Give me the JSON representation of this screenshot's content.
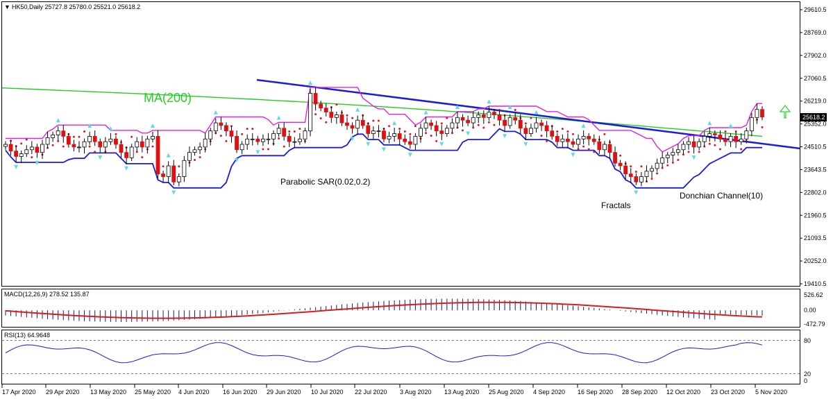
{
  "header": {
    "title": "HK50,Daily  25727.8 25780.0 25521.0 25618.2"
  },
  "price_panel": {
    "y_ticks": [
      "29610.5",
      "28769.0",
      "27902.0",
      "27060.5",
      "26219.0",
      "25352.0",
      "24510.5",
      "23643.5",
      "22802.0",
      "21960.5",
      "21093.5",
      "20252.0",
      "19410.5"
    ],
    "current_price": "25618.2",
    "annotations": {
      "ma": "MA(200)",
      "sar": "Parabolic SAR(0.02,0.2)",
      "fractals": "Fractals",
      "donchian": "Donchian Channel(10)"
    }
  },
  "macd_panel": {
    "title": "MACD(12,26,9) 278.52 135.87",
    "y_ticks": [
      "526.62",
      "0.00",
      "-472.79"
    ]
  },
  "rsi_panel": {
    "title": "RSI(13) 64.9648",
    "y_ticks": [
      "80",
      "20",
      "0"
    ]
  },
  "x_axis": {
    "labels": [
      "17 Apr 2020",
      "29 Apr 2020",
      "13 May 2020",
      "25 May 2020",
      "4 Jun 2020",
      "16 Jun 2020",
      "29 Jun 2020",
      "10 Jul 2020",
      "22 Jul 2020",
      "3 Aug 2020",
      "13 Aug 2020",
      "25 Aug 2020",
      "4 Sep 2020",
      "16 Sep 2020",
      "28 Sep 2020",
      "12 Oct 2020",
      "23 Oct 2020",
      "5 Nov 2020"
    ]
  },
  "chart_data": {
    "type": "candlestick",
    "price_range": [
      19410.5,
      29610.5
    ],
    "close": [
      24600,
      24350,
      24150,
      24250,
      24400,
      24500,
      24300,
      24600,
      24850,
      24950,
      25100,
      24900,
      24600,
      24500,
      24500,
      24700,
      24900,
      24700,
      24500,
      24700,
      24800,
      24600,
      24300,
      24100,
      24500,
      24700,
      24500,
      24800,
      24900,
      23500,
      23400,
      23800,
      23200,
      23400,
      24000,
      24300,
      24400,
      24500,
      24800,
      25100,
      25400,
      25300,
      25100,
      24900,
      24400,
      24600,
      24800,
      24800,
      24700,
      24800,
      24800,
      25000,
      25200,
      24900,
      24700,
      24700,
      24800,
      25100,
      26500,
      26100,
      25950,
      25800,
      25600,
      25700,
      25400,
      25300,
      25200,
      25500,
      25300,
      25000,
      25100,
      25100,
      24800,
      24900,
      25000,
      24800,
      24700,
      24600,
      24900,
      25200,
      25400,
      25300,
      25100,
      25000,
      25200,
      25400,
      25600,
      25500,
      25400,
      25600,
      25700,
      25600,
      25800,
      25700,
      25500,
      25300,
      25600,
      25500,
      25200,
      25000,
      25200,
      25400,
      25300,
      25100,
      24900,
      24700,
      24800,
      24700,
      24600,
      24800,
      24900,
      24800,
      24700,
      24400,
      24600,
      24300,
      23900,
      23800,
      23500,
      23400,
      23200,
      23400,
      23600,
      23700,
      23900,
      24100,
      24200,
      24300,
      24400,
      24600,
      24700,
      24500,
      24700,
      24900,
      25000,
      24950,
      24800,
      24700,
      24900,
      24700,
      24800,
      25100,
      25600,
      25900,
      25618.2
    ],
    "ma200": {
      "start": 26700,
      "end": 24900
    },
    "trendline": {
      "start": 27000,
      "end": 24450
    },
    "macd": {
      "range": [
        -472.79,
        526.62
      ],
      "signal_last": 135.87,
      "main_last": 278.52
    },
    "rsi": {
      "last": 64.9648,
      "levels": [
        80,
        20
      ]
    }
  }
}
